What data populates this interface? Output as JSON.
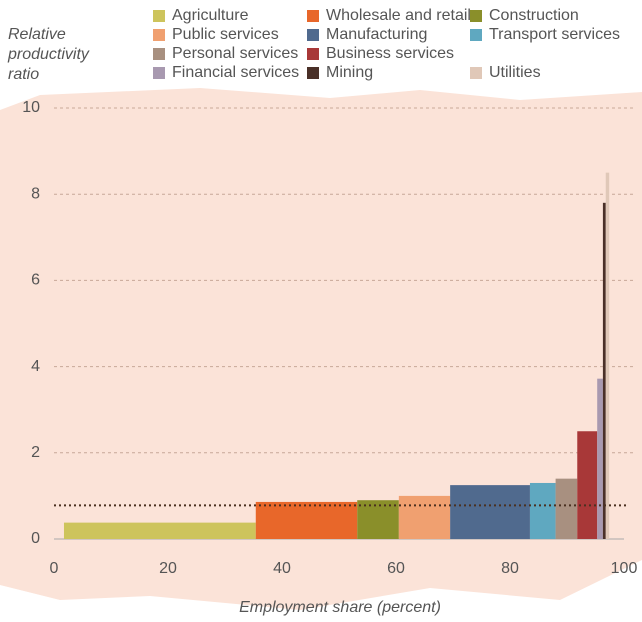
{
  "chart_data": {
    "type": "variable-width-bar",
    "y_label": "Relative productivity ratio",
    "x_label": "Employment share (percent)",
    "xlim": [
      0,
      100
    ],
    "xticks": [
      0,
      20,
      40,
      60,
      80,
      100
    ],
    "ylim": [
      0,
      10
    ],
    "yticks": [
      0,
      2,
      4,
      6,
      8,
      10
    ],
    "grid": true,
    "reference_line": {
      "value": 0.78,
      "color": "#4a3020"
    },
    "series": [
      {
        "name": "Agriculture",
        "color": "#cdc45c",
        "x_range": [
          1.75,
          35.4
        ],
        "value": 0.38
      },
      {
        "name": "Wholesale and retail",
        "color": "#e8672a",
        "x_range": [
          35.4,
          53.2
        ],
        "value": 0.86
      },
      {
        "name": "Construction",
        "color": "#8a8f2a",
        "x_range": [
          53.2,
          60.5
        ],
        "value": 0.9
      },
      {
        "name": "Public services",
        "color": "#f0a070",
        "x_range": [
          60.5,
          69.5
        ],
        "value": 1.0
      },
      {
        "name": "Manufacturing",
        "color": "#506a8e",
        "x_range": [
          69.5,
          83.5
        ],
        "value": 1.25
      },
      {
        "name": "Transport services",
        "color": "#5fa8c0",
        "x_range": [
          83.5,
          88
        ],
        "value": 1.3
      },
      {
        "name": "Personal services",
        "color": "#a89080",
        "x_range": [
          88,
          91.8
        ],
        "value": 1.4
      },
      {
        "name": "Business services",
        "color": "#a83838",
        "x_range": [
          91.8,
          95.3
        ],
        "value": 2.5
      },
      {
        "name": "Financial services",
        "color": "#a899b0",
        "x_range": [
          95.3,
          96.3
        ],
        "value": 3.72
      },
      {
        "name": "Mining",
        "color": "#4a3028",
        "x_range": [
          96.3,
          96.8
        ],
        "value": 7.8
      },
      {
        "name": "Utilities",
        "color": "#e0c8b8",
        "x_range": [
          96.8,
          97.4
        ],
        "value": 8.5
      }
    ]
  }
}
